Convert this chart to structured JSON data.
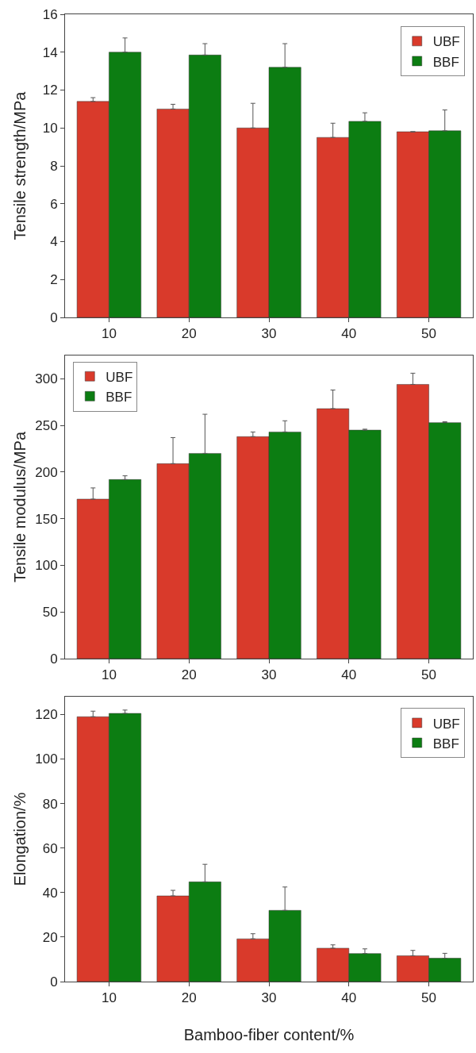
{
  "chart_data": [
    {
      "type": "bar",
      "ylabel": "Tensile strength/MPa",
      "categories": [
        "10",
        "20",
        "30",
        "40",
        "50"
      ],
      "ylim": [
        0,
        16
      ],
      "yticks": [
        0,
        2,
        4,
        6,
        8,
        10,
        12,
        14,
        16
      ],
      "grid": false,
      "legend": "top right",
      "tick_labels": "xy",
      "series": [
        {
          "name": "UBF",
          "color": "#d93a2b",
          "values": [
            11.4,
            11.0,
            10.0,
            9.5,
            9.8
          ],
          "errors": [
            [
              11.4,
              11.6
            ],
            [
              11.0,
              11.25
            ],
            [
              10.0,
              11.3
            ],
            [
              9.5,
              10.25
            ],
            null
          ]
        },
        {
          "name": "BBF",
          "color": "#0c7d12",
          "values": [
            14.0,
            13.85,
            13.2,
            10.35,
            9.85
          ],
          "errors": [
            [
              14.0,
              14.75
            ],
            [
              13.85,
              14.45
            ],
            [
              13.2,
              14.45
            ],
            [
              10.35,
              10.8
            ],
            [
              9.85,
              10.95
            ]
          ]
        }
      ]
    },
    {
      "type": "bar",
      "ylabel": "Tensile modulus/MPa",
      "categories": [
        "10",
        "20",
        "30",
        "40",
        "50"
      ],
      "ylim": [
        0,
        325
      ],
      "yticks": [
        0,
        50,
        100,
        150,
        200,
        250,
        300
      ],
      "grid": false,
      "legend": "top left",
      "series": [
        {
          "name": "UBF",
          "color": "#d93a2b",
          "values": [
            171,
            209,
            238,
            268,
            294
          ],
          "errors": [
            [
              171,
              183
            ],
            [
              209,
              237
            ],
            [
              238,
              243
            ],
            [
              268,
              288
            ],
            [
              294,
              306
            ]
          ]
        },
        {
          "name": "BBF",
          "color": "#0c7d12",
          "values": [
            192,
            220,
            243,
            245,
            253
          ],
          "errors": [
            [
              192,
              196
            ],
            [
              220,
              262
            ],
            [
              243,
              255
            ],
            [
              245,
              246
            ],
            [
              253,
              254
            ]
          ]
        }
      ]
    },
    {
      "type": "bar",
      "ylabel": "Elongation/%",
      "xlabel": "Bamboo-fiber content/%",
      "categories": [
        "10",
        "20",
        "30",
        "40",
        "50"
      ],
      "ylim": [
        0,
        128
      ],
      "yticks": [
        0,
        20,
        40,
        60,
        80,
        100,
        120
      ],
      "grid": false,
      "legend": "top right",
      "series": [
        {
          "name": "UBF",
          "color": "#d93a2b",
          "values": [
            119,
            38.5,
            19.2,
            15,
            11.6
          ],
          "errors": [
            [
              119,
              121.5
            ],
            [
              38.5,
              41
            ],
            [
              19.2,
              21.5
            ],
            [
              15,
              16.5
            ],
            [
              11.6,
              14
            ]
          ]
        },
        {
          "name": "BBF",
          "color": "#0c7d12",
          "values": [
            120.5,
            44.8,
            32,
            12.6,
            10.5
          ],
          "errors": [
            [
              120.5,
              122
            ],
            [
              44.8,
              52.7
            ],
            [
              32,
              42.5
            ],
            [
              12.6,
              14.7
            ],
            [
              10.5,
              12.7
            ]
          ]
        }
      ]
    }
  ]
}
